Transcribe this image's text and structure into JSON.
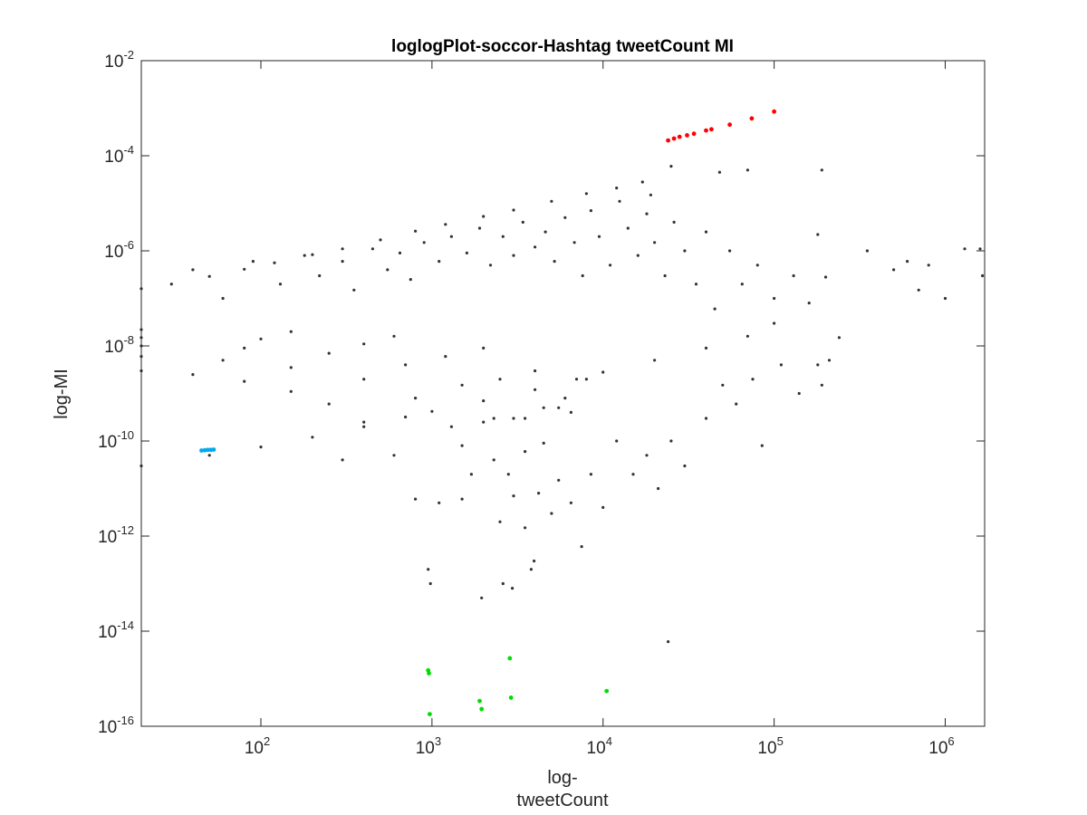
{
  "chart_data": {
    "type": "scatter",
    "title": "loglogPlot-soccor-Hashtag tweetCount MI",
    "xlabel_lines": [
      "log-",
      "tweetCount"
    ],
    "ylabel": "log-MI",
    "xscale": "log",
    "yscale": "log",
    "xlim": [
      20,
      1700000
    ],
    "ylim": [
      1e-16,
      0.01
    ],
    "grid": false,
    "legend": "none",
    "x_ticks": [
      {
        "base": "10",
        "exp": "2",
        "value": 100
      },
      {
        "base": "10",
        "exp": "3",
        "value": 1000
      },
      {
        "base": "10",
        "exp": "4",
        "value": 10000
      },
      {
        "base": "10",
        "exp": "5",
        "value": 100000
      },
      {
        "base": "10",
        "exp": "6",
        "value": 1000000
      }
    ],
    "y_ticks": [
      {
        "base": "10",
        "exp": "-16",
        "value": 1e-16
      },
      {
        "base": "10",
        "exp": "-14",
        "value": 1e-14
      },
      {
        "base": "10",
        "exp": "-12",
        "value": 1e-12
      },
      {
        "base": "10",
        "exp": "-10",
        "value": 1e-10
      },
      {
        "base": "10",
        "exp": "-8",
        "value": 1e-08
      },
      {
        "base": "10",
        "exp": "-6",
        "value": 1e-06
      },
      {
        "base": "10",
        "exp": "-4",
        "value": 0.0001
      },
      {
        "base": "10",
        "exp": "-2",
        "value": 0.01
      }
    ],
    "series": [
      {
        "color": "#333333",
        "points": [
          [
            20,
            1.6e-07
          ],
          [
            30,
            2e-07
          ],
          [
            50,
            2.9e-07
          ],
          [
            80,
            4.1e-07
          ],
          [
            120,
            5.6e-07
          ],
          [
            200,
            8.3e-07
          ],
          [
            300,
            1.1e-06
          ],
          [
            500,
            1.7e-06
          ],
          [
            800,
            2.6e-06
          ],
          [
            1200,
            3.6e-06
          ],
          [
            2000,
            5.3e-06
          ],
          [
            3000,
            7.2e-06
          ],
          [
            5000,
            1.1e-05
          ],
          [
            8000,
            1.6e-05
          ],
          [
            12000,
            2.1e-05
          ],
          [
            17000,
            2.8e-05
          ],
          [
            20,
            3e-11
          ],
          [
            50,
            5e-11
          ],
          [
            100,
            7.5e-11
          ],
          [
            200,
            1.2e-10
          ],
          [
            400,
            2e-10
          ],
          [
            700,
            3.2e-10
          ],
          [
            1000,
            4.2e-10
          ],
          [
            2000,
            7e-10
          ],
          [
            4000,
            1.2e-09
          ],
          [
            7000,
            2e-09
          ],
          [
            10000,
            2.8e-09
          ],
          [
            20000,
            5e-09
          ],
          [
            40000,
            9e-09
          ],
          [
            70000,
            1.6e-08
          ],
          [
            100000,
            3e-08
          ],
          [
            200000,
            2.8e-07
          ],
          [
            20,
            3e-09
          ],
          [
            40,
            2.5e-09
          ],
          [
            80,
            1.8e-09
          ],
          [
            150,
            1.1e-09
          ],
          [
            250,
            6e-10
          ],
          [
            400,
            2.5e-10
          ],
          [
            600,
            5e-11
          ],
          [
            800,
            6e-12
          ],
          [
            950,
            2e-13
          ],
          [
            980,
            1e-13
          ],
          [
            1100,
            5e-12
          ],
          [
            1500,
            8e-11
          ],
          [
            2000,
            2.5e-10
          ],
          [
            20,
            6e-09
          ],
          [
            60,
            5e-09
          ],
          [
            150,
            3.5e-09
          ],
          [
            400,
            2e-09
          ],
          [
            800,
            8e-10
          ],
          [
            1300,
            2e-10
          ],
          [
            1700,
            2e-11
          ],
          [
            1950,
            5e-14
          ],
          [
            2300,
            4e-11
          ],
          [
            3000,
            3e-10
          ],
          [
            20,
            1e-08
          ],
          [
            80,
            9e-09
          ],
          [
            250,
            7e-09
          ],
          [
            700,
            4e-09
          ],
          [
            1500,
            1.5e-09
          ],
          [
            2300,
            3e-10
          ],
          [
            2800,
            2e-11
          ],
          [
            2950,
            8e-14
          ],
          [
            3500,
            6e-11
          ],
          [
            4500,
            5e-10
          ],
          [
            20,
            1.5e-08
          ],
          [
            100,
            1.4e-08
          ],
          [
            400,
            1.1e-08
          ],
          [
            1200,
            6e-09
          ],
          [
            2500,
            2e-09
          ],
          [
            3500,
            3e-10
          ],
          [
            3950,
            3e-13
          ],
          [
            4500,
            9e-11
          ],
          [
            6000,
            8e-10
          ],
          [
            20,
            2.2e-08
          ],
          [
            150,
            2e-08
          ],
          [
            600,
            1.6e-08
          ],
          [
            2000,
            9e-09
          ],
          [
            4000,
            3e-09
          ],
          [
            5500,
            5e-10
          ],
          [
            6500,
            4e-10
          ],
          [
            8000,
            2e-09
          ],
          [
            40,
            4e-07
          ],
          [
            60,
            1e-07
          ],
          [
            90,
            6e-07
          ],
          [
            130,
            2e-07
          ],
          [
            180,
            8e-07
          ],
          [
            220,
            3e-07
          ],
          [
            300,
            6e-07
          ],
          [
            350,
            1.5e-07
          ],
          [
            450,
            1.1e-06
          ],
          [
            550,
            4e-07
          ],
          [
            650,
            9e-07
          ],
          [
            750,
            2.5e-07
          ],
          [
            900,
            1.5e-06
          ],
          [
            1100,
            6e-07
          ],
          [
            1300,
            2e-06
          ],
          [
            1600,
            9e-07
          ],
          [
            1900,
            3e-06
          ],
          [
            2200,
            5e-07
          ],
          [
            2600,
            2e-06
          ],
          [
            3000,
            8e-07
          ],
          [
            3400,
            4e-06
          ],
          [
            4000,
            1.2e-06
          ],
          [
            4600,
            2.5e-06
          ],
          [
            5200,
            6e-07
          ],
          [
            6000,
            5e-06
          ],
          [
            6800,
            1.5e-06
          ],
          [
            7600,
            3e-07
          ],
          [
            8500,
            7e-06
          ],
          [
            9500,
            2e-06
          ],
          [
            11000,
            5e-07
          ],
          [
            12500,
            1.1e-05
          ],
          [
            14000,
            3e-06
          ],
          [
            16000,
            8e-07
          ],
          [
            18000,
            6e-06
          ],
          [
            20000,
            1.5e-06
          ],
          [
            23000,
            3e-07
          ],
          [
            26000,
            4e-06
          ],
          [
            30000,
            1e-06
          ],
          [
            35000,
            2e-07
          ],
          [
            40000,
            2.5e-06
          ],
          [
            45000,
            6e-08
          ],
          [
            55000,
            1e-06
          ],
          [
            65000,
            2e-07
          ],
          [
            80000,
            5e-07
          ],
          [
            100000,
            1e-07
          ],
          [
            130000,
            3e-07
          ],
          [
            160000,
            8e-08
          ],
          [
            300,
            4e-11
          ],
          [
            1500,
            6e-12
          ],
          [
            2500,
            2e-12
          ],
          [
            3000,
            7e-12
          ],
          [
            3500,
            1.5e-12
          ],
          [
            4200,
            8e-12
          ],
          [
            5000,
            3e-12
          ],
          [
            5500,
            1.5e-11
          ],
          [
            6500,
            5e-12
          ],
          [
            7500,
            6e-13
          ],
          [
            8500,
            2e-11
          ],
          [
            10000,
            4e-12
          ],
          [
            12000,
            1e-10
          ],
          [
            15000,
            2e-11
          ],
          [
            18000,
            5e-11
          ],
          [
            21000,
            1e-11
          ],
          [
            25000,
            1e-10
          ],
          [
            30000,
            3e-11
          ],
          [
            40000,
            3e-10
          ],
          [
            50000,
            1.5e-09
          ],
          [
            60000,
            6e-10
          ],
          [
            75000,
            2e-09
          ],
          [
            85000,
            8e-11
          ],
          [
            110000,
            4e-09
          ],
          [
            140000,
            1e-09
          ],
          [
            180000,
            4e-09
          ],
          [
            190000,
            1.5e-09
          ],
          [
            210000,
            5e-09
          ],
          [
            240000,
            1.5e-08
          ],
          [
            24000,
            6e-15
          ],
          [
            3800,
            2e-13
          ],
          [
            2600,
            1e-13
          ],
          [
            180000,
            2.2e-06
          ],
          [
            350000,
            1e-06
          ],
          [
            600000,
            6e-07
          ],
          [
            800000,
            5e-07
          ],
          [
            1000000,
            1e-07
          ],
          [
            1300000,
            1.1e-06
          ],
          [
            1600000,
            1.1e-06
          ],
          [
            1650000,
            3e-07
          ],
          [
            500000,
            4e-07
          ],
          [
            700000,
            1.5e-07
          ],
          [
            190000,
            5e-05
          ],
          [
            70000,
            5e-05
          ],
          [
            48000,
            4.5e-05
          ],
          [
            25000,
            6e-05
          ],
          [
            19000,
            1.5e-05
          ]
        ]
      },
      {
        "color": "#ff0000",
        "points": [
          [
            24000,
            0.00021
          ],
          [
            26000,
            0.00023
          ],
          [
            28000,
            0.00025
          ],
          [
            31000,
            0.00027
          ],
          [
            34000,
            0.00029
          ],
          [
            40000,
            0.00034
          ],
          [
            43000,
            0.00036
          ],
          [
            55000,
            0.00045
          ],
          [
            74000,
            0.00061
          ],
          [
            100000,
            0.00085
          ]
        ]
      },
      {
        "color": "#00dd00",
        "points": [
          [
            950,
            1.5e-15
          ],
          [
            960,
            1.3e-15
          ],
          [
            970,
            1.8e-16
          ],
          [
            1900,
            3.4e-16
          ],
          [
            1950,
            2.3e-16
          ],
          [
            2850,
            2.7e-15
          ],
          [
            2900,
            4e-16
          ],
          [
            10500,
            5.5e-16
          ]
        ]
      },
      {
        "color": "#00aaee",
        "points": [
          [
            45,
            6.3e-11
          ],
          [
            47,
            6.4e-11
          ],
          [
            49,
            6.5e-11
          ],
          [
            51,
            6.5e-11
          ],
          [
            53,
            6.6e-11
          ]
        ]
      }
    ]
  }
}
